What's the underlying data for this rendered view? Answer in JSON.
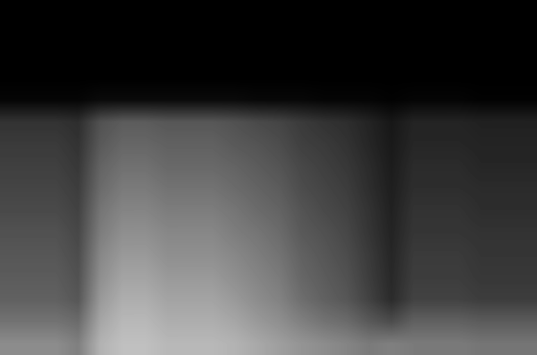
{
  "chart_data": {
    "type": "heatmap",
    "color": "gray",
    "tick_labels": false,
    "value_range": [
      0,
      1
    ],
    "cells": [
      [
        0,
        0,
        0,
        0,
        0,
        0,
        0,
        0,
        0,
        0,
        0,
        0,
        0,
        0,
        0,
        0,
        0,
        0,
        0,
        0,
        0,
        0,
        0,
        0
      ],
      [
        0,
        0,
        0,
        0,
        0,
        0,
        0,
        0,
        0,
        0,
        0,
        0,
        0,
        0,
        0,
        0,
        0,
        0,
        0,
        0,
        0,
        0,
        0,
        0
      ],
      [
        0,
        0,
        0,
        0,
        0,
        0,
        0,
        0,
        0,
        0,
        0,
        0,
        0,
        0,
        0,
        0,
        0,
        0,
        0,
        0,
        0,
        0,
        0,
        0
      ],
      [
        0,
        0,
        0,
        0,
        0,
        0,
        0,
        0,
        0,
        0,
        0,
        0,
        0,
        0,
        0,
        0,
        0,
        0,
        0,
        0,
        0,
        0,
        0,
        0
      ],
      [
        0.02,
        0.02,
        0.02,
        0.02,
        0.04,
        0.04,
        0.04,
        0.04,
        0.04,
        0.04,
        0.04,
        0.03,
        0.03,
        0.03,
        0.02,
        0.02,
        0.02,
        0.01,
        0.02,
        0.02,
        0.02,
        0.01,
        0.01,
        0.01
      ],
      [
        0.2,
        0.2,
        0.2,
        0.18,
        0.32,
        0.36,
        0.36,
        0.34,
        0.34,
        0.34,
        0.32,
        0.29,
        0.27,
        0.23,
        0.2,
        0.18,
        0.14,
        0.09,
        0.14,
        0.14,
        0.14,
        0.13,
        0.13,
        0.13
      ],
      [
        0.23,
        0.23,
        0.23,
        0.2,
        0.35,
        0.4,
        0.4,
        0.38,
        0.38,
        0.38,
        0.35,
        0.33,
        0.3,
        0.25,
        0.23,
        0.2,
        0.15,
        0.1,
        0.15,
        0.15,
        0.15,
        0.14,
        0.14,
        0.14
      ],
      [
        0.25,
        0.25,
        0.25,
        0.22,
        0.39,
        0.44,
        0.44,
        0.41,
        0.41,
        0.41,
        0.39,
        0.36,
        0.33,
        0.28,
        0.25,
        0.22,
        0.17,
        0.11,
        0.17,
        0.17,
        0.17,
        0.15,
        0.15,
        0.15
      ],
      [
        0.27,
        0.27,
        0.27,
        0.24,
        0.42,
        0.48,
        0.48,
        0.45,
        0.45,
        0.45,
        0.42,
        0.39,
        0.36,
        0.3,
        0.27,
        0.24,
        0.18,
        0.12,
        0.18,
        0.18,
        0.18,
        0.17,
        0.17,
        0.17
      ],
      [
        0.29,
        0.29,
        0.29,
        0.26,
        0.46,
        0.52,
        0.52,
        0.49,
        0.49,
        0.49,
        0.46,
        0.42,
        0.39,
        0.33,
        0.29,
        0.26,
        0.2,
        0.13,
        0.2,
        0.2,
        0.2,
        0.18,
        0.18,
        0.18
      ],
      [
        0.32,
        0.32,
        0.32,
        0.28,
        0.49,
        0.56,
        0.56,
        0.53,
        0.53,
        0.53,
        0.49,
        0.46,
        0.42,
        0.35,
        0.32,
        0.28,
        0.21,
        0.14,
        0.21,
        0.21,
        0.21,
        0.2,
        0.2,
        0.2
      ],
      [
        0.34,
        0.34,
        0.34,
        0.3,
        0.53,
        0.6,
        0.6,
        0.56,
        0.56,
        0.56,
        0.53,
        0.49,
        0.45,
        0.38,
        0.34,
        0.3,
        0.23,
        0.15,
        0.23,
        0.23,
        0.23,
        0.21,
        0.21,
        0.21
      ],
      [
        0.36,
        0.36,
        0.36,
        0.32,
        0.56,
        0.64,
        0.64,
        0.6,
        0.6,
        0.6,
        0.56,
        0.52,
        0.48,
        0.4,
        0.36,
        0.32,
        0.24,
        0.16,
        0.24,
        0.24,
        0.24,
        0.22,
        0.22,
        0.22
      ],
      [
        0.38,
        0.38,
        0.38,
        0.34,
        0.6,
        0.68,
        0.68,
        0.64,
        0.64,
        0.64,
        0.6,
        0.55,
        0.51,
        0.43,
        0.38,
        0.34,
        0.26,
        0.17,
        0.26,
        0.26,
        0.26,
        0.24,
        0.24,
        0.24
      ],
      [
        0.45,
        0.45,
        0.45,
        0.42,
        0.65,
        0.72,
        0.72,
        0.68,
        0.68,
        0.68,
        0.65,
        0.6,
        0.56,
        0.5,
        0.45,
        0.42,
        0.35,
        0.3,
        0.38,
        0.38,
        0.38,
        0.36,
        0.36,
        0.36
      ],
      [
        0.55,
        0.55,
        0.55,
        0.5,
        0.7,
        0.75,
        0.75,
        0.72,
        0.72,
        0.72,
        0.7,
        0.66,
        0.62,
        0.58,
        0.55,
        0.52,
        0.48,
        0.5,
        0.48,
        0.48,
        0.48,
        0.46,
        0.46,
        0.46
      ]
    ]
  }
}
